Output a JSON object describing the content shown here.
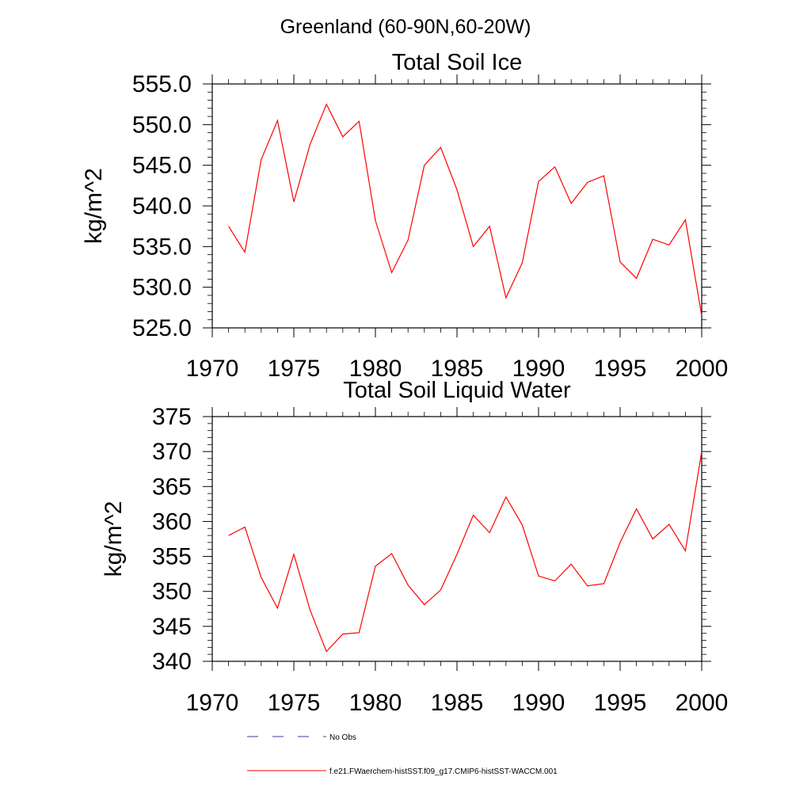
{
  "suptitle": "Greenland (60-90N,60-20W)",
  "legend": {
    "placement": "bottom-center",
    "items": [
      {
        "label": "No Obs",
        "color": "#3a3aa0",
        "style": "dashed"
      },
      {
        "label": "f.e21.FWaerchem-histSST.f09_g17.CMIP6-histSST-WACCM.001",
        "color": "#ff0000",
        "style": "solid"
      }
    ]
  },
  "chart_data": [
    {
      "type": "line",
      "title": "Total Soil Ice",
      "ylabel": "kg/m^2",
      "xlabel": "",
      "xlim": [
        1970,
        2000
      ],
      "ylim": [
        525,
        555
      ],
      "xticks": [
        1970,
        1975,
        1980,
        1985,
        1990,
        1995,
        2000
      ],
      "xtick_labels": [
        "1970",
        "1975",
        "1980",
        "1985",
        "1990",
        "1995",
        "2000"
      ],
      "yticks": [
        525,
        530,
        535,
        540,
        545,
        550,
        555
      ],
      "ytick_labels": [
        "525.0",
        "530.0",
        "535.0",
        "540.0",
        "545.0",
        "550.0",
        "555.0"
      ],
      "grid": false,
      "series": [
        {
          "name": "f.e21.FWaerchem-histSST.f09_g17.CMIP6-histSST-WACCM.001",
          "color": "#ff0000",
          "x": [
            1971,
            1972,
            1973,
            1974,
            1975,
            1976,
            1977,
            1978,
            1979,
            1980,
            1981,
            1982,
            1983,
            1984,
            1985,
            1986,
            1987,
            1988,
            1989,
            1990,
            1991,
            1992,
            1993,
            1994,
            1995,
            1996,
            1997,
            1998,
            1999,
            2000
          ],
          "y": [
            537.5,
            534.3,
            545.7,
            550.5,
            540.5,
            547.6,
            552.5,
            548.5,
            550.4,
            538.2,
            531.8,
            535.8,
            545.0,
            547.2,
            542.0,
            535.0,
            537.5,
            528.7,
            533.0,
            543.0,
            544.8,
            540.3,
            542.9,
            543.7,
            533.1,
            531.1,
            535.9,
            535.2,
            538.3,
            526.5
          ]
        }
      ]
    },
    {
      "type": "line",
      "title": "Total Soil Liquid Water",
      "ylabel": "kg/m^2",
      "xlabel": "",
      "xlim": [
        1970,
        2000
      ],
      "ylim": [
        340,
        375
      ],
      "xticks": [
        1970,
        1975,
        1980,
        1985,
        1990,
        1995,
        2000
      ],
      "xtick_labels": [
        "1970",
        "1975",
        "1980",
        "1985",
        "1990",
        "1995",
        "2000"
      ],
      "yticks": [
        340,
        345,
        350,
        355,
        360,
        365,
        370,
        375
      ],
      "ytick_labels": [
        "340",
        "345",
        "350",
        "355",
        "360",
        "365",
        "370",
        "375"
      ],
      "grid": false,
      "series": [
        {
          "name": "f.e21.FWaerchem-histSST.f09_g17.CMIP6-histSST-WACCM.001",
          "color": "#ff0000",
          "x": [
            1971,
            1972,
            1973,
            1974,
            1975,
            1976,
            1977,
            1978,
            1979,
            1980,
            1981,
            1982,
            1983,
            1984,
            1985,
            1986,
            1987,
            1988,
            1989,
            1990,
            1991,
            1992,
            1993,
            1994,
            1995,
            1996,
            1997,
            1998,
            1999,
            2000
          ],
          "y": [
            358.0,
            359.2,
            352.0,
            347.6,
            355.3,
            347.3,
            341.4,
            343.9,
            344.1,
            353.6,
            355.4,
            350.9,
            348.1,
            350.2,
            355.3,
            360.9,
            358.4,
            363.5,
            359.5,
            352.2,
            351.5,
            353.9,
            350.8,
            351.1,
            357.0,
            361.8,
            357.5,
            359.6,
            355.8,
            370.0
          ]
        }
      ]
    }
  ]
}
